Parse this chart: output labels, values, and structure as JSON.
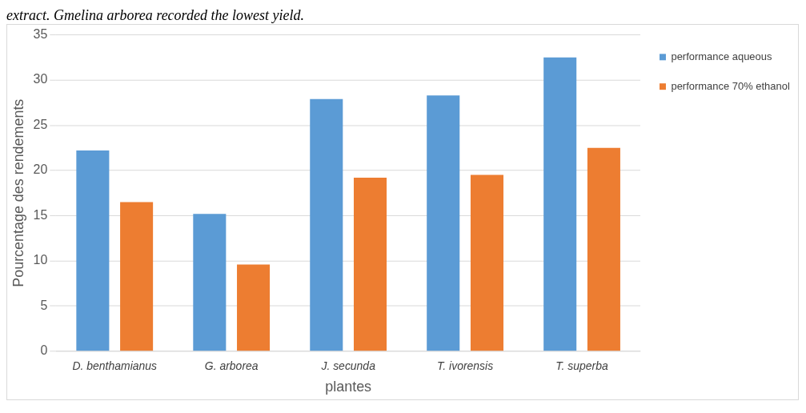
{
  "chart_data": {
    "type": "bar",
    "xlabel": "plantes",
    "ylabel": "Pourcentage des rendements",
    "annotations": [
      "extract. Gmelina arborea recorded the lowest yield."
    ],
    "categories": [
      "D. benthamianus",
      "G. arborea",
      "J. secunda",
      "T. ivorensis",
      "T. superba"
    ],
    "series": [
      {
        "name": "performance aqueous",
        "color": "#5b9bd5",
        "values": [
          22.2,
          15.2,
          27.9,
          28.3,
          32.5
        ]
      },
      {
        "name": "performance 70% ethanol",
        "color": "#ed7d31",
        "values": [
          16.5,
          9.6,
          19.2,
          19.5,
          22.5
        ]
      }
    ],
    "ylim": [
      0,
      35
    ],
    "yticks": [
      0,
      5,
      10,
      15,
      20,
      25,
      30,
      35
    ],
    "grid": "y",
    "legend": "top right"
  }
}
